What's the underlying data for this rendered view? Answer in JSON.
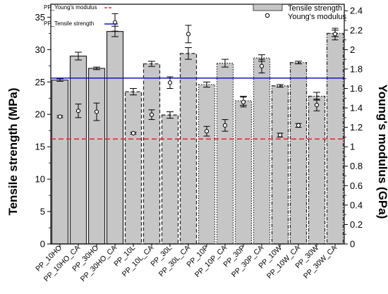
{
  "chart_data": {
    "type": "bar",
    "categories": [
      "PP_10HO",
      "PP_10HO_CA",
      "PP_30HO",
      "PP_30HO_CA",
      "PP_10L",
      "PP_10L_CA",
      "PP_30L",
      "PP_30L_CA",
      "PP_10P",
      "PP_10P_CA",
      "PP_30P",
      "PP_30P_CA",
      "PP_10W",
      "PP_10W_CA",
      "PP_30W",
      "PP_30W_CA"
    ],
    "series": [
      {
        "name": "Tensile strength",
        "axis": "left",
        "values": [
          25.3,
          29.0,
          27.1,
          32.8,
          23.5,
          27.8,
          19.9,
          29.4,
          24.6,
          27.9,
          22.1,
          28.7,
          24.4,
          28.0,
          22.8,
          32.5
        ],
        "errors": [
          0.2,
          0.6,
          0.2,
          0.8,
          0.5,
          0.4,
          0.5,
          0.9,
          0.4,
          0.6,
          0.7,
          0.5,
          0.2,
          0.2,
          0.6,
          0.5
        ]
      },
      {
        "name": "Young's modulus",
        "axis": "right",
        "values": [
          1.31,
          1.37,
          1.36,
          2.28,
          1.14,
          1.33,
          1.66,
          2.16,
          1.16,
          1.22,
          1.46,
          1.83,
          1.12,
          1.22,
          1.43,
          2.16
        ],
        "errors": [
          0.01,
          0.07,
          0.09,
          0.09,
          0.01,
          0.05,
          0.06,
          0.09,
          0.05,
          0.06,
          0.05,
          0.07,
          0.02,
          0.02,
          0.06,
          0.06
        ]
      }
    ],
    "bar_border_styles": [
      "solid",
      "solid",
      "solid",
      "solid",
      "dashed",
      "dashed",
      "dashed",
      "dashed",
      "dotted",
      "dotted",
      "dotted",
      "dotted",
      "dash-dot",
      "dash-dot",
      "dash-dot",
      "dash-dot"
    ],
    "reference_lines": [
      {
        "name": "PP_Tensile strength",
        "axis": "left",
        "value": 25.6,
        "color": "#1515c8",
        "style": "solid"
      },
      {
        "name": "PP_Young's modulus",
        "axis": "right",
        "value": 1.08,
        "color": "#e03030",
        "style": "dashed"
      }
    ],
    "ylabel": "Tensile strength (MPa)",
    "y2label": "Young's modulus (GPa)",
    "ylim": [
      0,
      37
    ],
    "y2lim": [
      0,
      2.467
    ],
    "yticks": [
      0,
      5,
      10,
      15,
      20,
      25,
      30,
      35
    ],
    "y2ticks": [
      0,
      0.2,
      0.4,
      0.6,
      0.8,
      1,
      1.2,
      1.4,
      1.6,
      1.8,
      2,
      2.2,
      2.4
    ],
    "legend_position": "top-right",
    "colors": {
      "bar_fill": "#c6c6c6",
      "bar_edge": "#222222",
      "marker_fill": "#ffffff"
    }
  }
}
